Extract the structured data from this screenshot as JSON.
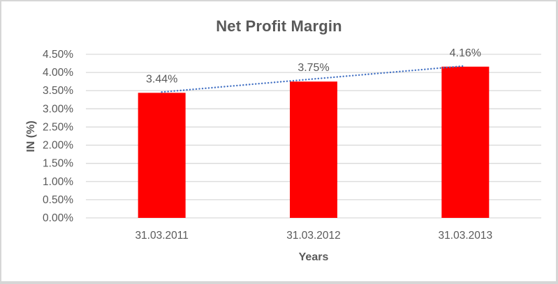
{
  "chart_data": {
    "type": "bar",
    "title": "Net Profit Margin",
    "categories": [
      "31.03.2011",
      "31.03.2012",
      "31.03.2013"
    ],
    "values": [
      3.44,
      3.75,
      4.16
    ],
    "data_labels": [
      "3.44%",
      "3.75%",
      "4.16%"
    ],
    "xlabel": "Years",
    "ylabel": "IN (%)",
    "ylim": [
      0,
      4.5
    ],
    "ytick_step": 0.5,
    "yticks": [
      "4.50%",
      "4.00%",
      "3.50%",
      "3.00%",
      "2.50%",
      "2.00%",
      "1.50%",
      "1.00%",
      "0.50%",
      "0.00%"
    ],
    "grid": true,
    "legend": "none",
    "bar_color": "#FF0000",
    "text_color": "#595959",
    "gridline_color": "#D9D9D9",
    "trendline": {
      "type": "linear",
      "style": "dotted",
      "color": "#4472C4"
    }
  }
}
